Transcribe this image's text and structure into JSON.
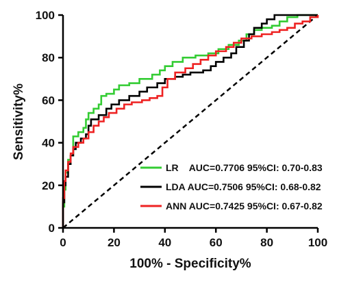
{
  "chart_data": {
    "type": "line",
    "title": "",
    "xlabel": "100% - Specificity%",
    "ylabel": "Sensitivity%",
    "xlim": [
      0,
      100
    ],
    "ylim": [
      0,
      100
    ],
    "xticks": [
      "0",
      "20",
      "40",
      "60",
      "80",
      "100"
    ],
    "yticks": [
      "0",
      "20",
      "40",
      "60",
      "80",
      "100"
    ],
    "grid": false,
    "legend_position": "bottom-right",
    "reference_line": {
      "style": "dashed",
      "color": "#000000",
      "points": [
        [
          0,
          0
        ],
        [
          100,
          100
        ]
      ]
    },
    "series": [
      {
        "name": "LR",
        "label": "LR    AUC=0.7706 95%CI: 0.70-0.83",
        "color": "#33cc33",
        "points": [
          [
            0,
            0
          ],
          [
            0,
            10
          ],
          [
            0.5,
            18
          ],
          [
            1,
            23
          ],
          [
            1,
            26
          ],
          [
            2,
            28
          ],
          [
            2,
            32
          ],
          [
            3,
            34
          ],
          [
            4,
            38
          ],
          [
            4,
            43
          ],
          [
            6,
            45
          ],
          [
            8,
            47
          ],
          [
            9,
            51
          ],
          [
            10,
            54
          ],
          [
            12,
            56
          ],
          [
            14,
            58
          ],
          [
            15,
            62
          ],
          [
            17,
            63
          ],
          [
            20,
            65
          ],
          [
            22,
            67
          ],
          [
            26,
            68
          ],
          [
            30,
            70
          ],
          [
            35,
            72
          ],
          [
            38,
            74
          ],
          [
            40,
            76
          ],
          [
            43,
            78
          ],
          [
            47,
            80
          ],
          [
            52,
            81
          ],
          [
            57,
            82
          ],
          [
            61,
            84
          ],
          [
            65,
            86
          ],
          [
            69,
            88
          ],
          [
            72,
            91
          ],
          [
            75,
            93
          ],
          [
            78,
            94
          ],
          [
            82,
            95
          ],
          [
            85,
            97
          ],
          [
            88,
            99
          ],
          [
            92,
            100
          ],
          [
            100,
            100
          ]
        ]
      },
      {
        "name": "LDA",
        "label": "LDA AUC=0.7506 95%CI: 0.68-0.82",
        "color": "#000000",
        "points": [
          [
            0,
            0
          ],
          [
            0,
            12
          ],
          [
            0.5,
            20
          ],
          [
            1,
            24
          ],
          [
            2,
            30
          ],
          [
            3,
            34
          ],
          [
            4,
            37
          ],
          [
            5,
            40
          ],
          [
            7,
            42
          ],
          [
            9,
            44
          ],
          [
            10,
            48
          ],
          [
            11,
            51
          ],
          [
            14,
            53
          ],
          [
            17,
            56
          ],
          [
            19,
            58
          ],
          [
            22,
            60
          ],
          [
            26,
            62
          ],
          [
            30,
            64
          ],
          [
            33,
            66
          ],
          [
            37,
            68
          ],
          [
            40,
            70
          ],
          [
            44,
            71
          ],
          [
            47,
            72
          ],
          [
            50,
            73
          ],
          [
            55,
            74
          ],
          [
            58,
            76
          ],
          [
            60,
            78
          ],
          [
            63,
            80
          ],
          [
            66,
            82
          ],
          [
            68,
            85
          ],
          [
            71,
            88
          ],
          [
            73,
            91
          ],
          [
            75,
            94
          ],
          [
            78,
            96
          ],
          [
            80,
            98
          ],
          [
            83,
            100
          ],
          [
            100,
            100
          ]
        ]
      },
      {
        "name": "ANN",
        "label": "ANN AUC=0.7425 95%CI: 0.67-0.82",
        "color": "#ee2222",
        "points": [
          [
            0,
            0
          ],
          [
            0,
            14
          ],
          [
            0.5,
            22
          ],
          [
            1,
            27
          ],
          [
            2,
            31
          ],
          [
            3,
            35
          ],
          [
            4,
            38
          ],
          [
            6,
            40
          ],
          [
            8,
            42
          ],
          [
            10,
            45
          ],
          [
            12,
            48
          ],
          [
            14,
            50
          ],
          [
            16,
            52
          ],
          [
            18,
            54
          ],
          [
            21,
            56
          ],
          [
            24,
            58
          ],
          [
            27,
            59
          ],
          [
            31,
            60
          ],
          [
            34,
            61
          ],
          [
            37,
            62
          ],
          [
            39,
            66
          ],
          [
            41,
            70
          ],
          [
            44,
            73
          ],
          [
            48,
            75
          ],
          [
            51,
            77
          ],
          [
            54,
            79
          ],
          [
            57,
            81
          ],
          [
            60,
            83
          ],
          [
            64,
            85
          ],
          [
            67,
            87
          ],
          [
            70,
            89
          ],
          [
            74,
            90
          ],
          [
            78,
            91
          ],
          [
            82,
            92
          ],
          [
            85,
            93
          ],
          [
            88,
            94
          ],
          [
            91,
            96
          ],
          [
            94,
            97
          ],
          [
            97,
            99
          ],
          [
            100,
            100
          ]
        ]
      }
    ]
  }
}
